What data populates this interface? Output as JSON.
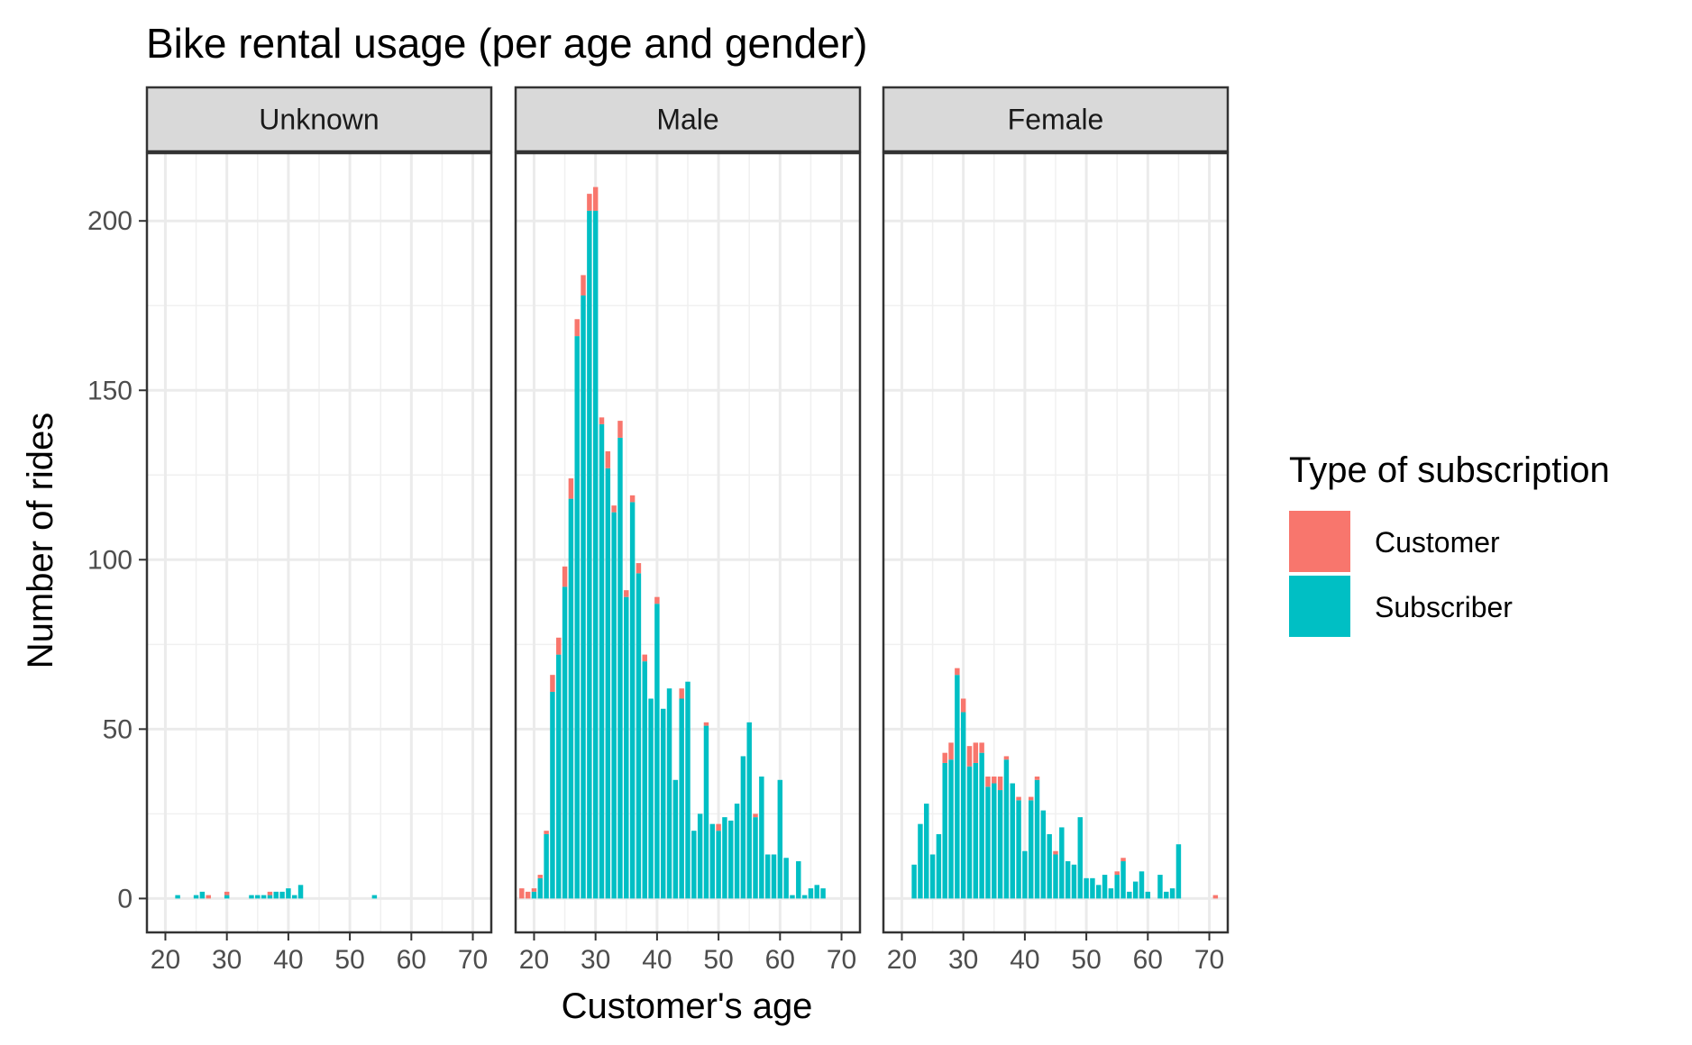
{
  "chart_data": {
    "type": "bar",
    "stacked": true,
    "title": "Bike rental usage (per age and gender)",
    "xlabel": "Customer's age",
    "ylabel": "Number of rides",
    "xlim": [
      17,
      73
    ],
    "ylim": [
      -10,
      220
    ],
    "x_ticks": [
      20,
      30,
      40,
      50,
      60,
      70
    ],
    "y_ticks": [
      0,
      50,
      100,
      150,
      200
    ],
    "grid": true,
    "legend": {
      "title": "Type of subscription",
      "position": "right",
      "entries": [
        {
          "name": "Customer",
          "color": "#F8766D"
        },
        {
          "name": "Subscriber",
          "color": "#00BFC4"
        }
      ]
    },
    "colors": {
      "Customer": "#F8766D",
      "Subscriber": "#00BFC4"
    },
    "facets": [
      {
        "label": "Unknown",
        "ages": [
          22,
          25,
          26,
          27,
          30,
          34,
          35,
          36,
          37,
          38,
          39,
          40,
          41,
          42,
          54
        ],
        "subscriber": [
          1,
          1,
          2,
          0,
          1,
          1,
          1,
          1,
          1,
          2,
          2,
          3,
          1,
          4,
          1
        ],
        "customer": [
          0,
          0,
          0,
          1,
          1,
          0,
          0,
          0,
          1,
          0,
          0,
          0,
          0,
          0,
          0
        ]
      },
      {
        "label": "Male",
        "ages": [
          18,
          19,
          20,
          21,
          22,
          23,
          24,
          25,
          26,
          27,
          28,
          29,
          30,
          31,
          32,
          33,
          34,
          35,
          36,
          37,
          38,
          39,
          40,
          41,
          42,
          43,
          44,
          45,
          46,
          47,
          48,
          49,
          50,
          51,
          52,
          53,
          54,
          55,
          56,
          57,
          58,
          59,
          60,
          61,
          62,
          63,
          64,
          65,
          66,
          67,
          68,
          69
        ],
        "subscriber": [
          0,
          0,
          2,
          6,
          19,
          61,
          72,
          92,
          118,
          166,
          178,
          203,
          203,
          140,
          127,
          114,
          136,
          89,
          117,
          96,
          70,
          59,
          87,
          56,
          62,
          35,
          59,
          64,
          20,
          25,
          51,
          22,
          20,
          24,
          23,
          28,
          42,
          52,
          24,
          36,
          13,
          13,
          35,
          12,
          1,
          11,
          1,
          3,
          4,
          3,
          0,
          0
        ],
        "customer": [
          3,
          2,
          1,
          1,
          1,
          5,
          5,
          6,
          6,
          5,
          6,
          5,
          7,
          2,
          5,
          2,
          5,
          2,
          2,
          3,
          2,
          0,
          2,
          0,
          0,
          0,
          3,
          0,
          0,
          0,
          1,
          0,
          2,
          0,
          0,
          0,
          0,
          0,
          1,
          0,
          0,
          0,
          0,
          0,
          0,
          0,
          0,
          0,
          0,
          0,
          0,
          0
        ]
      },
      {
        "label": "Female",
        "ages": [
          22,
          23,
          24,
          25,
          26,
          27,
          28,
          29,
          30,
          31,
          32,
          33,
          34,
          35,
          36,
          37,
          38,
          39,
          40,
          41,
          42,
          43,
          44,
          45,
          46,
          47,
          48,
          49,
          50,
          51,
          52,
          53,
          54,
          55,
          56,
          57,
          58,
          59,
          60,
          61,
          62,
          63,
          64,
          65,
          66,
          71
        ],
        "subscriber": [
          10,
          22,
          28,
          13,
          19,
          40,
          41,
          66,
          55,
          39,
          40,
          43,
          33,
          34,
          32,
          41,
          34,
          29,
          14,
          29,
          35,
          26,
          19,
          13,
          21,
          11,
          10,
          24,
          6,
          6,
          4,
          7,
          3,
          7,
          11,
          2,
          5,
          8,
          2,
          0,
          7,
          2,
          3,
          16,
          0,
          0
        ],
        "customer": [
          0,
          0,
          0,
          0,
          0,
          3,
          5,
          2,
          4,
          6,
          6,
          3,
          3,
          2,
          4,
          1,
          0,
          1,
          0,
          1,
          1,
          0,
          0,
          1,
          0,
          0,
          0,
          0,
          0,
          0,
          0,
          0,
          0,
          1,
          1,
          0,
          0,
          0,
          0,
          0,
          0,
          0,
          0,
          0,
          0,
          1
        ]
      }
    ]
  }
}
